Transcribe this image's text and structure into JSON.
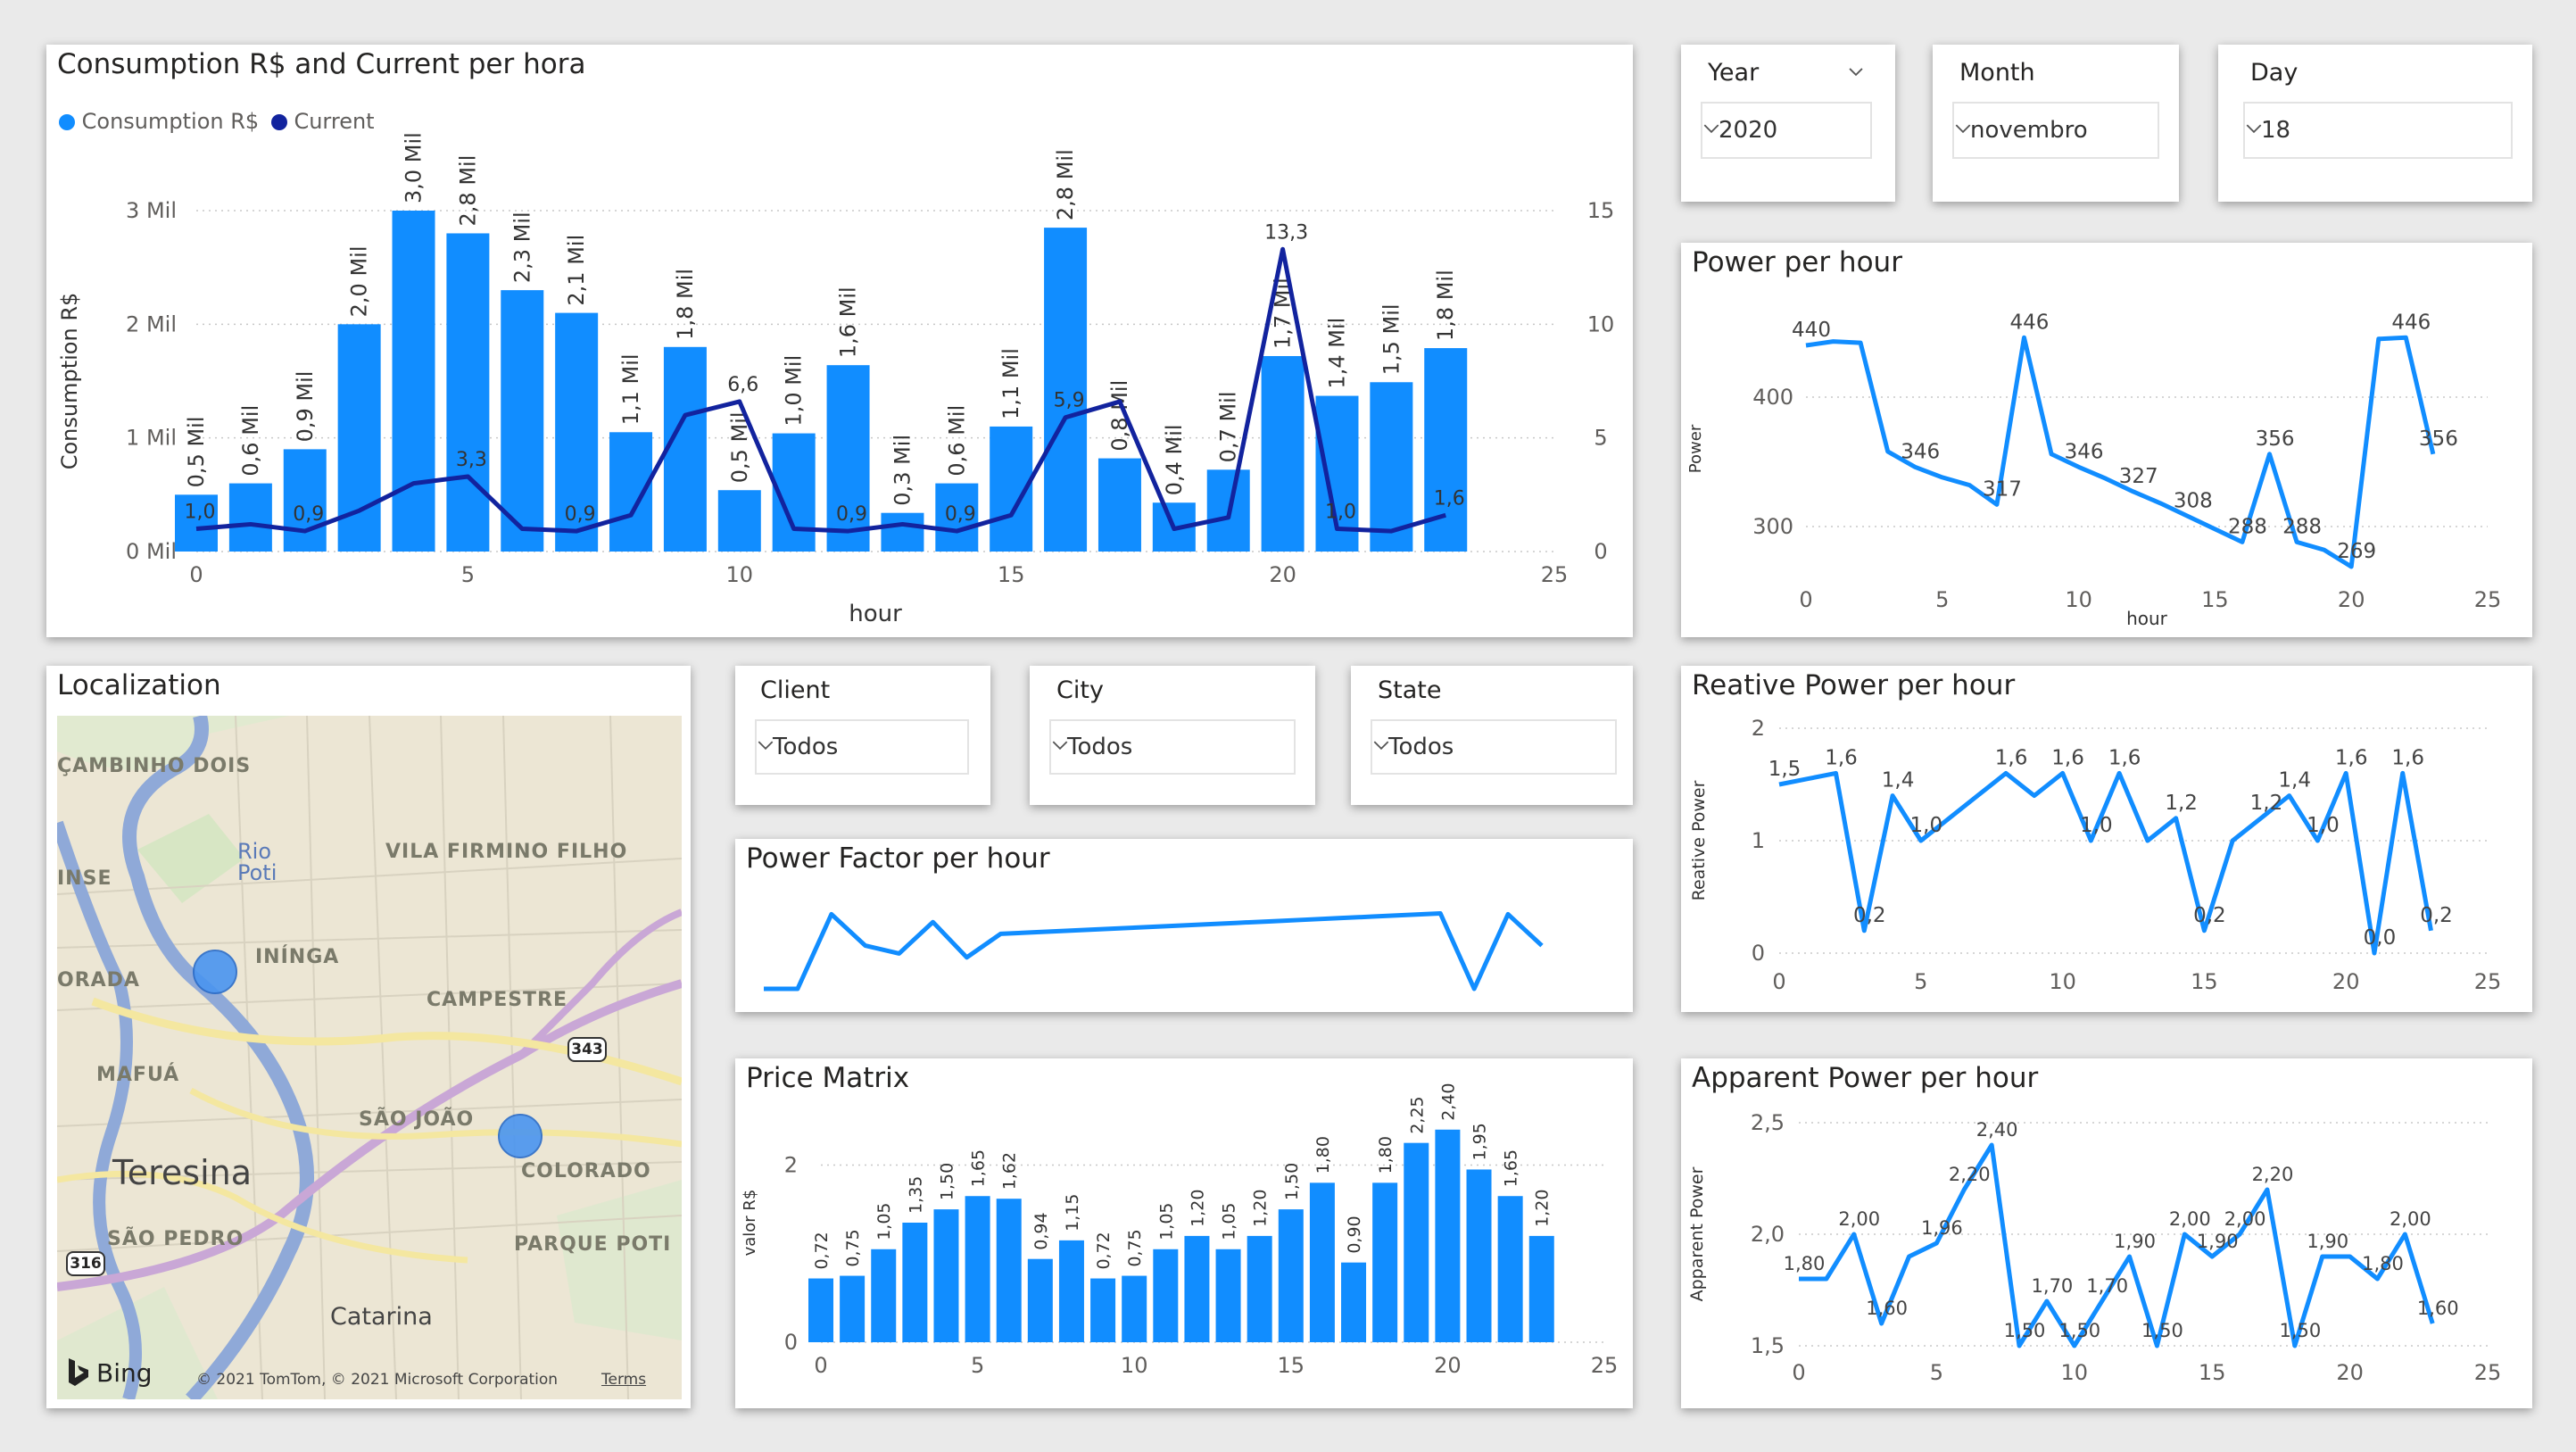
{
  "colors": {
    "bar": "#118DFF",
    "current": "#12239E",
    "grid": "#c8c8c8",
    "text": "#605E5C"
  },
  "main": {
    "title": "Consumption R$ and Current per hora",
    "legend": [
      {
        "label": "Consumption R$",
        "color": "#118DFF"
      },
      {
        "label": "Current",
        "color": "#12239E"
      }
    ],
    "xlabel": "hour",
    "ylabel": "Consumption R$"
  },
  "slicers": {
    "year": {
      "label": "Year",
      "value": "2020"
    },
    "month": {
      "label": "Month",
      "value": "novembro"
    },
    "day": {
      "label": "Day",
      "value": "18"
    },
    "client": {
      "label": "Client",
      "value": "Todos"
    },
    "city": {
      "label": "City",
      "value": "Todos"
    },
    "state": {
      "label": "State",
      "value": "Todos"
    }
  },
  "map": {
    "title": "Localization",
    "labels": [
      "ÇAMBINHO DOIS",
      "VILA FIRMINO FILHO",
      "INSE",
      "Rio",
      "Poti",
      "INÍNGA",
      "ORADA",
      "CAMPESTRE",
      "MAFUÁ",
      "SÃO JOÃO",
      "Teresina",
      "COLORADO",
      "SÃO PEDRO",
      "PARQUE POTI",
      "Catarina"
    ],
    "road_shields": [
      "343",
      "316"
    ],
    "attribution": "© 2021 TomTom, © 2021 Microsoft Corporation",
    "terms": "Terms",
    "brand": "Bing"
  },
  "chart_data": [
    {
      "id": "consumption",
      "type": "bar",
      "title": "Consumption R$ and Current per hora",
      "x": [
        0,
        1,
        2,
        3,
        4,
        5,
        6,
        7,
        8,
        9,
        10,
        11,
        12,
        13,
        14,
        15,
        16,
        17,
        18,
        19,
        20,
        21,
        22,
        23
      ],
      "series": [
        {
          "name": "Consumption R$",
          "axis": "left",
          "values": [
            500,
            600,
            900,
            2000,
            3000,
            2800,
            2300,
            2100,
            1050,
            1800,
            540,
            1040,
            1640,
            340,
            600,
            1100,
            2850,
            820,
            430,
            720,
            1720,
            1370,
            1490,
            1790
          ],
          "labels": [
            "0,5 Mil",
            "0,6 Mil",
            "0,9 Mil",
            "2,0 Mil",
            "3,0 Mil",
            "2,8 Mil",
            "2,3 Mil",
            "2,1 Mil",
            "1,1 Mil",
            "1,8 Mil",
            "0,5 Mil",
            "1,0 Mil",
            "1,6 Mil",
            "0,3 Mil",
            "0,6 Mil",
            "1,1 Mil",
            "2,8 Mil",
            "0,8 Mil",
            "0,4 Mil",
            "0,7 Mil",
            "1,7 Mil",
            "1,4 Mil",
            "1,5 Mil",
            "1,8 Mil"
          ]
        },
        {
          "name": "Current",
          "type": "line",
          "axis": "right",
          "values": [
            1.0,
            1.2,
            0.9,
            1.8,
            3.0,
            3.3,
            1.0,
            0.9,
            1.6,
            6.0,
            6.6,
            1.0,
            0.9,
            1.2,
            0.9,
            1.6,
            5.9,
            6.6,
            1.0,
            1.5,
            13.3,
            1.0,
            0.9,
            1.6
          ],
          "labels": {
            "0": "1,0",
            "2": "0,9",
            "5": "3,3",
            "7": "0,9",
            "10": "6,6",
            "12": "0,9",
            "14": "0,9",
            "16": "5,9",
            "20": "13,3",
            "21": "1,0",
            "23": "1,6"
          }
        }
      ],
      "xlabel": "hour",
      "ylabel": "Consumption R$",
      "xlim": [
        0,
        25
      ],
      "xticks": [
        0,
        5,
        10,
        15,
        20,
        25
      ],
      "ylim": [
        0,
        3000
      ],
      "yticks": [
        0,
        1000,
        2000,
        3000
      ],
      "ytick_labels": [
        "0 Mil",
        "1 Mil",
        "2 Mil",
        "3 Mil"
      ],
      "y2lim": [
        0,
        15
      ],
      "y2ticks": [
        0,
        5,
        10,
        15
      ]
    },
    {
      "id": "power",
      "type": "line",
      "title": "Power per hour",
      "x": [
        0,
        1,
        2,
        3,
        4,
        5,
        6,
        7,
        8,
        9,
        10,
        11,
        12,
        13,
        14,
        15,
        16,
        17,
        18,
        19,
        20,
        21,
        22,
        23
      ],
      "series": [
        {
          "name": "Power",
          "values": [
            440,
            443,
            442,
            358,
            346,
            338,
            332,
            317,
            446,
            356,
            346,
            337,
            327,
            318,
            308,
            298,
            288,
            356,
            288,
            282,
            269,
            445,
            446,
            356
          ],
          "labels": {
            "0": "440",
            "4": "346",
            "7": "317",
            "8": "446",
            "10": "346",
            "12": "327",
            "14": "308",
            "16": "288",
            "17": "356",
            "18": "288",
            "20": "269",
            "22": "446",
            "23": "356"
          }
        }
      ],
      "xlabel": "hour",
      "ylabel": "Power",
      "xlim": [
        0,
        25
      ],
      "xticks": [
        0,
        5,
        10,
        15,
        20,
        25
      ],
      "ylim": [
        260,
        460
      ],
      "yticks": [
        300,
        400
      ]
    },
    {
      "id": "reactive",
      "type": "line",
      "title": "Reative Power per hour",
      "x": [
        0,
        1,
        2,
        3,
        4,
        5,
        6,
        7,
        8,
        9,
        10,
        11,
        12,
        13,
        14,
        15,
        16,
        17,
        18,
        19,
        20,
        21,
        22,
        23
      ],
      "series": [
        {
          "name": "Reative Power",
          "values": [
            1.5,
            1.55,
            1.6,
            0.2,
            1.4,
            1.0,
            1.2,
            1.4,
            1.6,
            1.4,
            1.6,
            1.0,
            1.6,
            1.0,
            1.2,
            0.2,
            1.0,
            1.2,
            1.4,
            1.0,
            1.6,
            0.0,
            1.6,
            0.2
          ],
          "labels": {
            "0": "1,5",
            "2": "1,6",
            "3": "0,2",
            "4": "1,4",
            "5": "1,0",
            "8": "1,6",
            "10": "1,6",
            "11": "1,0",
            "12": "1,6",
            "14": "1,2",
            "15": "0,2",
            "17": "1,2",
            "18": "1,4",
            "19": "1,0",
            "20": "1,6",
            "21": "0,0",
            "22": "1,6",
            "23": "0,2"
          }
        }
      ],
      "xlabel": "",
      "ylabel": "Reative Power",
      "xlim": [
        0,
        25
      ],
      "xticks": [
        0,
        5,
        10,
        15,
        20,
        25
      ],
      "ylim": [
        0,
        2
      ],
      "yticks": [
        0,
        1,
        2
      ]
    },
    {
      "id": "power_factor",
      "type": "line",
      "title": "Power Factor per hour",
      "x": [
        0,
        1,
        2,
        3,
        4,
        5,
        6,
        7,
        8,
        9,
        10,
        11,
        12,
        13,
        14,
        15,
        16,
        17,
        18,
        19,
        20,
        21,
        22,
        23
      ],
      "series": [
        {
          "name": "Power Factor",
          "values": [
            0.0,
            0.0,
            0.95,
            0.55,
            0.45,
            0.85,
            0.4,
            0.7,
            0.72,
            0.74,
            0.76,
            0.78,
            0.8,
            0.82,
            0.84,
            0.86,
            0.88,
            0.9,
            0.92,
            0.94,
            0.96,
            0.0,
            0.95,
            0.55
          ]
        }
      ],
      "xlabel": "",
      "ylabel": "",
      "xlim": [
        0,
        23
      ],
      "ylim": [
        0,
        1
      ]
    },
    {
      "id": "price",
      "type": "bar",
      "title": "Price Matrix",
      "x": [
        0,
        1,
        2,
        3,
        4,
        5,
        6,
        7,
        8,
        9,
        10,
        11,
        12,
        13,
        14,
        15,
        16,
        17,
        18,
        19,
        20,
        21,
        22,
        23
      ],
      "series": [
        {
          "name": "valor R$",
          "values": [
            0.72,
            0.75,
            1.05,
            1.35,
            1.5,
            1.65,
            1.62,
            0.94,
            1.15,
            0.72,
            0.75,
            1.05,
            1.2,
            1.05,
            1.2,
            1.5,
            1.8,
            0.9,
            1.8,
            2.25,
            2.4,
            1.95,
            1.65,
            1.2
          ],
          "labels": [
            "0,72",
            "0,75",
            "1,05",
            "1,35",
            "1,50",
            "1,65",
            "1,62",
            "0,94",
            "1,15",
            "0,72",
            "0,75",
            "1,05",
            "1,20",
            "1,05",
            "1,20",
            "1,50",
            "1,80",
            "0,90",
            "1,80",
            "2,25",
            "2,40",
            "1,95",
            "1,65",
            "1,20"
          ]
        }
      ],
      "xlabel": "",
      "ylabel": "valor R$",
      "xlim": [
        0,
        25
      ],
      "xticks": [
        0,
        5,
        10,
        15,
        20,
        25
      ],
      "ylim": [
        0,
        2.7
      ],
      "yticks": [
        0,
        2
      ]
    },
    {
      "id": "apparent",
      "type": "line",
      "title": "Apparent Power per hour",
      "x": [
        0,
        1,
        2,
        3,
        4,
        5,
        6,
        7,
        8,
        9,
        10,
        11,
        12,
        13,
        14,
        15,
        16,
        17,
        18,
        19,
        20,
        21,
        22,
        23
      ],
      "series": [
        {
          "name": "Apparent Power",
          "values": [
            1.8,
            1.8,
            2.0,
            1.6,
            1.9,
            1.96,
            2.2,
            2.4,
            1.5,
            1.7,
            1.5,
            1.7,
            1.9,
            1.5,
            2.0,
            1.9,
            2.0,
            2.2,
            1.5,
            1.9,
            1.9,
            1.8,
            2.0,
            1.6
          ],
          "labels": {
            "0": "1,80",
            "2": "2,00",
            "3": "1,60",
            "5": "1,96",
            "6": "2,20",
            "7": "2,40",
            "8": "1,50",
            "9": "1,70",
            "10": "1,50",
            "11": "1,70",
            "12": "1,90",
            "13": "1,50",
            "14": "2,00",
            "15": "1,90",
            "16": "2,00",
            "17": "2,20",
            "18": "1,50",
            "19": "1,90",
            "21": "1,80",
            "22": "2,00",
            "23": "1,60"
          }
        }
      ],
      "xlabel": "",
      "ylabel": "Apparent Power",
      "xlim": [
        0,
        25
      ],
      "xticks": [
        0,
        5,
        10,
        15,
        20,
        25
      ],
      "ylim": [
        1.5,
        2.5
      ],
      "yticks": [
        1.5,
        2.0,
        2.5
      ],
      "ytick_labels": [
        "1,5",
        "2,0",
        "2,5"
      ]
    }
  ]
}
